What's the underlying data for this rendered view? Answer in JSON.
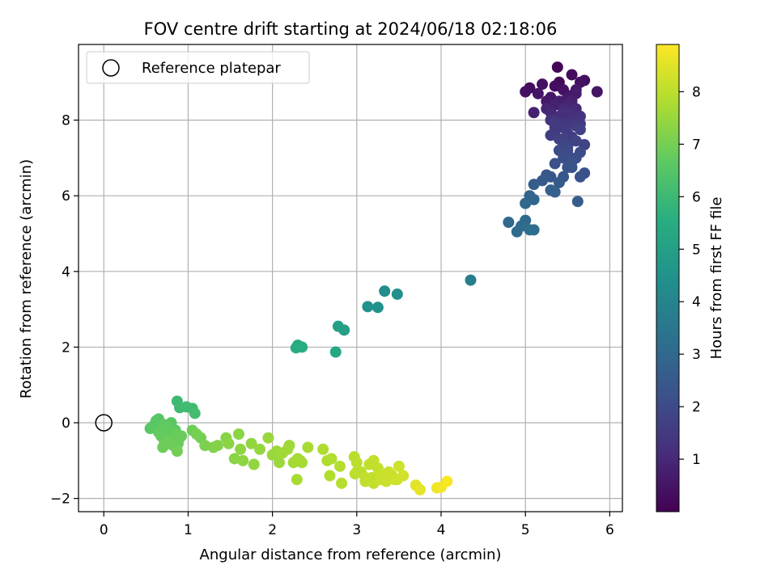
{
  "chart_data": {
    "type": "scatter",
    "title": "FOV centre drift starting at 2024/06/18 02:18:06",
    "xlabel": "Angular distance from reference (arcmin)",
    "ylabel": "Rotation from reference (arcmin)",
    "xlim": [
      -0.3,
      6.15
    ],
    "ylim": [
      -2.35,
      10.0
    ],
    "xticks": [
      0,
      1,
      2,
      3,
      4,
      5,
      6
    ],
    "yticks": [
      -2,
      0,
      2,
      4,
      6,
      8
    ],
    "grid": true,
    "legend": {
      "position": "top-left",
      "entries": [
        "Reference platepar"
      ]
    },
    "reference_point": {
      "x": 0,
      "y": 0
    },
    "colorbar": {
      "label": "Hours from first FF file",
      "colormap": "viridis",
      "range": [
        0,
        8.9
      ],
      "ticks": [
        1,
        2,
        3,
        4,
        5,
        6,
        7,
        8
      ]
    },
    "series": [
      {
        "x": [
          5.0,
          5.05,
          5.15,
          5.25,
          5.3,
          5.35,
          5.4,
          5.45,
          5.5,
          5.55,
          5.6,
          5.65,
          5.7,
          5.25,
          5.3,
          5.35,
          5.4,
          5.45,
          5.5,
          5.55,
          5.6,
          5.65,
          5.35,
          5.4,
          5.45,
          5.5,
          5.2,
          5.6,
          5.85,
          5.55,
          5.38,
          5.1,
          5.3,
          5.45,
          5.5,
          5.6,
          5.65,
          5.4,
          5.55
        ],
        "y": [
          8.75,
          8.85,
          8.7,
          8.5,
          8.6,
          8.9,
          9.0,
          8.8,
          8.6,
          8.5,
          8.7,
          9.0,
          9.05,
          8.3,
          8.2,
          8.4,
          8.5,
          8.3,
          8.4,
          8.2,
          8.3,
          8.1,
          8.0,
          8.1,
          8.2,
          7.9,
          8.95,
          8.8,
          8.75,
          9.2,
          9.4,
          8.2,
          8.0,
          7.8,
          8.1,
          8.05,
          7.9,
          8.45,
          8.65
        ],
        "hours": [
          0.4,
          0.3,
          0.5,
          0.6,
          0.5,
          0.3,
          0.2,
          0.4,
          0.6,
          0.8,
          0.7,
          0.4,
          0.3,
          0.9,
          1.0,
          0.8,
          0.7,
          1.0,
          0.9,
          1.1,
          1.0,
          1.3,
          1.2,
          1.1,
          1.2,
          1.4,
          0.4,
          0.6,
          0.5,
          0.3,
          0.1,
          0.8,
          1.3,
          1.5,
          1.2,
          1.3,
          1.5,
          0.7,
          0.6
        ]
      },
      {
        "x": [
          5.3,
          5.35,
          5.4,
          5.45,
          5.5,
          5.55,
          5.6,
          5.65,
          5.5,
          5.45,
          5.4,
          5.35,
          5.6,
          5.65,
          5.55,
          5.7,
          5.5,
          5.4,
          5.6,
          5.45,
          5.35,
          5.5
        ],
        "y": [
          7.6,
          7.7,
          7.5,
          7.4,
          7.3,
          7.55,
          7.45,
          7.75,
          7.2,
          7.0,
          7.2,
          7.8,
          7.0,
          7.15,
          6.9,
          7.35,
          7.65,
          7.9,
          7.85,
          7.5,
          7.95,
          7.1
        ],
        "hours": [
          1.6,
          1.5,
          1.7,
          1.8,
          1.9,
          1.6,
          1.8,
          1.7,
          2.0,
          2.1,
          2.0,
          1.5,
          2.1,
          2.0,
          2.2,
          1.8,
          1.6,
          1.4,
          1.6,
          1.7,
          1.5,
          2.0
        ]
      },
      {
        "x": [
          5.35,
          5.5,
          5.65,
          5.7,
          5.3,
          5.2,
          5.25,
          5.1,
          5.45,
          5.4,
          5.55,
          5.35,
          5.3,
          5.05,
          5.1,
          5.0,
          5.0,
          4.95,
          4.8,
          4.9,
          5.0,
          5.05,
          5.1,
          5.62
        ],
        "y": [
          6.85,
          6.75,
          6.5,
          6.6,
          6.5,
          6.4,
          6.55,
          6.3,
          6.5,
          6.35,
          6.75,
          6.1,
          6.15,
          6.0,
          5.9,
          5.8,
          5.8,
          5.2,
          5.3,
          5.05,
          5.35,
          5.1,
          5.1,
          5.85
        ],
        "hours": [
          2.2,
          2.3,
          2.3,
          2.2,
          2.4,
          2.5,
          2.4,
          2.6,
          2.4,
          2.5,
          2.3,
          2.7,
          2.7,
          2.8,
          2.9,
          3.0,
          3.0,
          3.1,
          3.0,
          3.1,
          3.0,
          3.2,
          3.2,
          2.6
        ]
      },
      {
        "x": [
          4.35,
          3.48,
          3.33,
          3.25,
          3.13,
          2.78,
          2.85,
          2.75,
          2.3,
          2.35,
          2.28
        ],
        "y": [
          3.77,
          3.4,
          3.48,
          3.05,
          3.07,
          2.55,
          2.45,
          1.87,
          2.05,
          2.0,
          1.98
        ],
        "hours": [
          3.8,
          4.4,
          4.3,
          4.5,
          4.5,
          5.0,
          5.0,
          5.3,
          5.4,
          5.5,
          5.5
        ]
      },
      {
        "x": [
          0.87,
          0.9,
          0.98,
          1.05,
          1.08,
          0.55,
          0.6,
          0.65,
          0.7,
          0.75,
          0.8,
          0.85,
          0.9,
          0.6,
          0.68,
          0.72,
          0.78,
          0.82,
          0.88,
          0.7,
          0.65,
          0.75,
          0.85,
          0.8,
          0.72,
          0.68,
          0.62,
          0.58,
          0.92,
          0.87,
          0.77
        ],
        "y": [
          0.57,
          0.4,
          0.42,
          0.38,
          0.25,
          -0.15,
          -0.05,
          0.1,
          -0.2,
          -0.3,
          -0.1,
          -0.2,
          -0.4,
          -0.1,
          -0.35,
          -0.5,
          -0.45,
          -0.6,
          -0.55,
          -0.65,
          -0.25,
          -0.15,
          -0.3,
          0.0,
          -0.05,
          -0.2,
          0.05,
          -0.1,
          -0.35,
          -0.75,
          -0.5
        ],
        "hours": [
          6.0,
          6.05,
          6.1,
          6.1,
          6.15,
          6.6,
          6.6,
          6.5,
          6.7,
          6.7,
          6.6,
          6.65,
          6.8,
          6.6,
          6.75,
          6.8,
          6.8,
          6.85,
          6.85,
          6.9,
          6.7,
          6.7,
          6.8,
          6.6,
          6.7,
          6.75,
          6.55,
          6.6,
          6.85,
          6.95,
          6.9
        ]
      },
      {
        "x": [
          1.05,
          1.1,
          1.15,
          1.2,
          1.3,
          1.35,
          1.45,
          1.48,
          1.55,
          1.6,
          1.62,
          1.65,
          1.75,
          1.78,
          1.85,
          1.95,
          2.0,
          2.05,
          2.08,
          2.12,
          2.18,
          2.2,
          2.25,
          2.3,
          2.35,
          2.42,
          2.6,
          2.65,
          2.7,
          2.68,
          2.8,
          2.82,
          2.97,
          3.0,
          3.05,
          3.1,
          3.15,
          3.2,
          3.25,
          3.3,
          3.35,
          3.42,
          3.48,
          3.5,
          3.55,
          3.0,
          3.1,
          3.2,
          3.28,
          3.38,
          3.45,
          2.98,
          3.18,
          2.29,
          2.33
        ],
        "y": [
          -0.2,
          -0.3,
          -0.4,
          -0.6,
          -0.65,
          -0.6,
          -0.4,
          -0.55,
          -0.95,
          -0.3,
          -0.7,
          -1.0,
          -0.55,
          -1.1,
          -0.7,
          -0.4,
          -0.85,
          -0.75,
          -1.05,
          -0.8,
          -0.7,
          -0.6,
          -1.05,
          -0.95,
          -1.05,
          -0.65,
          -0.7,
          -1.0,
          -0.95,
          -1.4,
          -1.15,
          -1.6,
          -0.9,
          -1.05,
          -1.3,
          -1.45,
          -1.1,
          -1.0,
          -1.2,
          -1.35,
          -1.55,
          -1.4,
          -1.5,
          -1.15,
          -1.4,
          -1.3,
          -1.55,
          -1.6,
          -1.5,
          -1.3,
          -1.5,
          -1.35,
          -1.45,
          -1.5,
          -1.0
        ],
        "hours": [
          6.9,
          7.0,
          7.0,
          7.1,
          7.15,
          7.2,
          7.25,
          7.3,
          7.3,
          7.3,
          7.35,
          7.35,
          7.4,
          7.4,
          7.45,
          7.5,
          7.5,
          7.55,
          7.55,
          7.6,
          7.6,
          7.6,
          7.65,
          7.65,
          7.7,
          7.7,
          7.8,
          7.8,
          7.85,
          7.85,
          7.9,
          7.9,
          7.95,
          8.0,
          8.0,
          8.05,
          8.05,
          8.1,
          8.1,
          8.15,
          8.2,
          8.2,
          8.25,
          8.25,
          8.3,
          7.95,
          8.05,
          8.1,
          8.15,
          8.2,
          8.25,
          8.0,
          8.1,
          7.7,
          7.7
        ]
      },
      {
        "x": [
          3.7,
          3.75,
          3.95,
          4.0,
          4.07
        ],
        "y": [
          -1.65,
          -1.77,
          -1.72,
          -1.7,
          -1.55
        ],
        "hours": [
          8.5,
          8.55,
          8.7,
          8.75,
          8.85
        ]
      }
    ]
  }
}
